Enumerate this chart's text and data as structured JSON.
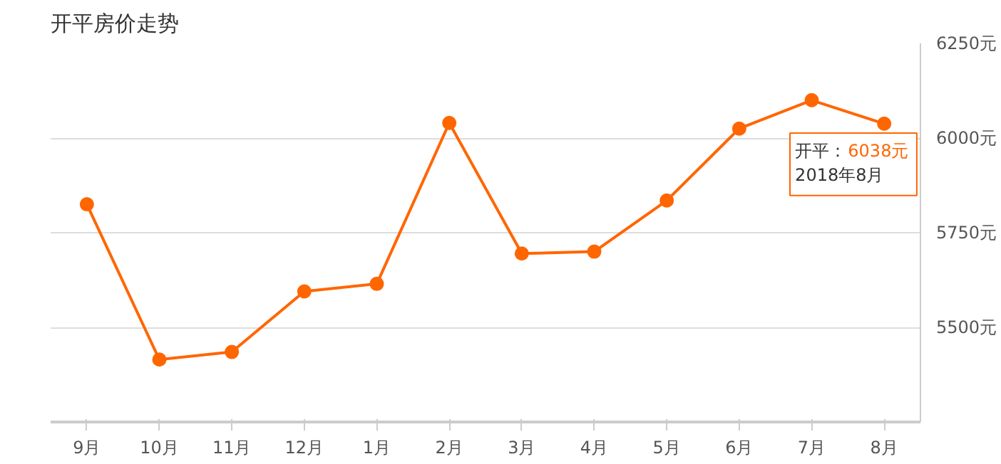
{
  "chart_data": {
    "type": "line",
    "title": "开平房价走势",
    "categories": [
      "9月",
      "10月",
      "11月",
      "12月",
      "1月",
      "2月",
      "3月",
      "4月",
      "5月",
      "6月",
      "7月",
      "8月"
    ],
    "series": [
      {
        "name": "开平：",
        "color": "#ff6600",
        "values": [
          5825,
          5415,
          5435,
          5595,
          5615,
          6040,
          5695,
          5700,
          5835,
          6025,
          6100,
          6038
        ],
        "value_labels": [
          null,
          null,
          null,
          null,
          null,
          null,
          null,
          null,
          null,
          null,
          null,
          "6038元"
        ]
      }
    ],
    "annotations": [
      {
        "text": "2018年8月",
        "x": "8月",
        "y": 6038
      }
    ],
    "ylim": [
      5250,
      6250
    ],
    "yticks": [
      {
        "value": 5500,
        "label": "5500元"
      },
      {
        "value": 5750,
        "label": "5750元"
      },
      {
        "value": 6000,
        "label": "6000元"
      },
      {
        "value": 6250,
        "label": "6250元"
      }
    ],
    "grid": "y",
    "marker": "circle",
    "line_style": "solid"
  }
}
